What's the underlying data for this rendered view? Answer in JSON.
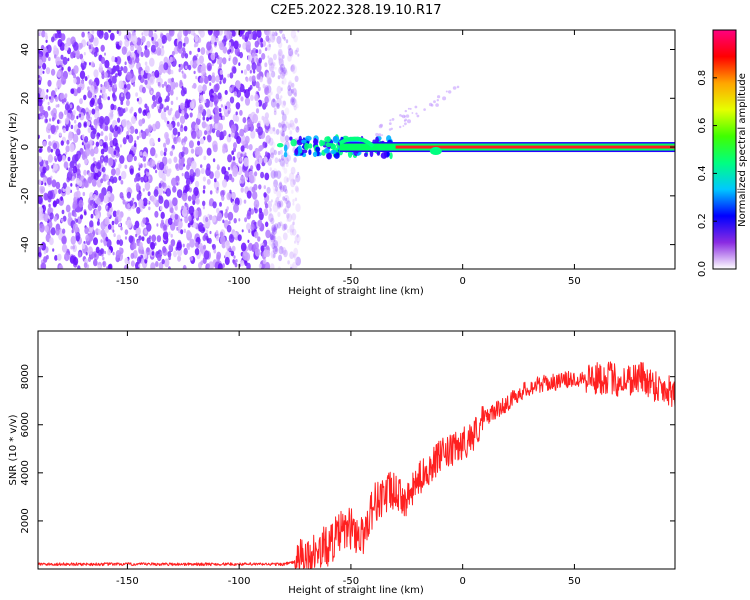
{
  "figure": {
    "title": "C2E5.2022.328.19.10.R17"
  },
  "chart_data": [
    {
      "type": "heatmap",
      "xlabel": "Height of straight line (km)",
      "ylabel": "Frequency (Hz)",
      "xlim": [
        -190,
        95
      ],
      "ylim": [
        -50,
        48
      ],
      "x_ticks": [
        -150,
        -100,
        -50,
        0,
        50
      ],
      "y_ticks": [
        -40,
        -20,
        0,
        20,
        40
      ],
      "colorbar": {
        "label": "Normalized spectral amplitude",
        "range": [
          0,
          1
        ],
        "ticks": [
          0.0,
          0.2,
          0.4,
          0.6,
          0.8
        ],
        "tick_labels": [
          "0.0",
          "0.2",
          "0.4",
          "0.6",
          "0.8"
        ],
        "colormap": "rainbow",
        "stops": [
          "#ffffff",
          "#8a2be2",
          "#0000ff",
          "#00c8ff",
          "#00ff80",
          "#40ff00",
          "#e6ff00",
          "#ffa500",
          "#ff0000",
          "#ff0080"
        ]
      },
      "description_regions": {
        "noise_band_x": [
          -190,
          -78
        ],
        "noise_color": "#7b2fff",
        "signal_track_x": [
          -82,
          95
        ],
        "signal_frequency_hz": 0,
        "signal_color": "#ff2020",
        "signal_edge_color": "#00ff60"
      }
    },
    {
      "type": "line",
      "xlabel": "Height of straight line (km)",
      "ylabel": "SNR (10 * v/v)",
      "xlim": [
        -190,
        95
      ],
      "ylim": [
        0,
        9900
      ],
      "x_ticks": [
        -150,
        -100,
        -50,
        0,
        50
      ],
      "y_ticks": [
        2000,
        4000,
        6000,
        8000
      ],
      "color": "#ff2020",
      "series": [
        {
          "x": [
            -190,
            -150,
            -100,
            -80,
            -70,
            -60,
            -55,
            -50,
            -45,
            -40,
            -35,
            -30,
            -25,
            -20,
            -15,
            -10,
            -5,
            0,
            5,
            10,
            15,
            20,
            25,
            30,
            35,
            40,
            45,
            50,
            55,
            60,
            65,
            70,
            75,
            80,
            85,
            90,
            95
          ],
          "values": [
            200,
            200,
            200,
            200,
            400,
            1000,
            1500,
            1700,
            1300,
            2700,
            3100,
            3200,
            2800,
            3700,
            4200,
            4700,
            4900,
            5200,
            5600,
            6300,
            6600,
            6900,
            7300,
            7550,
            7700,
            7750,
            7850,
            7900,
            8000,
            7900,
            8000,
            7800,
            7900,
            8000,
            7700,
            7500,
            7400
          ]
        }
      ]
    }
  ]
}
